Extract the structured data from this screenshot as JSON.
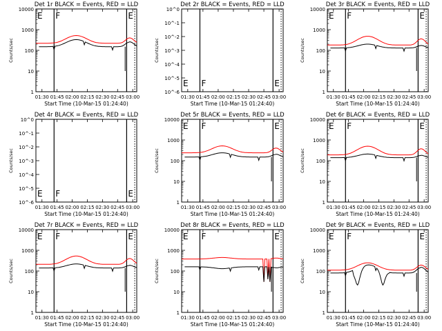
{
  "figure": {
    "xlabel": "Start Time (10-Mar-15 01:24:40)",
    "ylabel": "Counts/sec",
    "x_ticks": [
      "01:30",
      "01:45",
      "02:00",
      "02:15",
      "02:30",
      "02:45",
      "03:00"
    ],
    "x_range_min_after_start": [
      0,
      100
    ],
    "y_tick_labels_counts": [
      "1",
      "10",
      "100",
      "1000",
      "10000"
    ],
    "y_range_counts": [
      1,
      10000
    ],
    "y_tick_labels_small": [
      "10^-6",
      "10^-5",
      "10^-4",
      "10^-3",
      "10^-2",
      "10^-1",
      "10^0"
    ],
    "y_range_small": [
      1e-06,
      1
    ],
    "colors": {
      "events": "#000000",
      "lld": "#ff0000"
    },
    "annotations": [
      "E",
      "F",
      "E"
    ],
    "marker_times_min": [
      18,
      90
    ],
    "dotted_time_min": 98
  },
  "chart_data": [
    {
      "type": "line",
      "title": "Det 1r BLACK = Events, RED = LLD",
      "ylim": [
        1,
        10000
      ],
      "has_data": true,
      "events_level": 150,
      "lld_level": 220,
      "events_peak": 330,
      "lld_peak": 520,
      "notch": null,
      "spikes": [],
      "end_drop": true
    },
    {
      "type": "line",
      "title": "Det 2r BLACK = Events, RED = LLD",
      "ylim": [
        1e-06,
        1
      ],
      "has_data": false
    },
    {
      "type": "line",
      "title": "Det 3r BLACK = Events, RED = LLD",
      "ylim": [
        1,
        10000
      ],
      "has_data": true,
      "events_level": 130,
      "lld_level": 180,
      "events_peak": 200,
      "lld_peak": 480,
      "notch": null,
      "spikes": [],
      "end_drop": true
    },
    {
      "type": "line",
      "title": "Det 4r BLACK = Events, RED = LLD",
      "ylim": [
        1e-06,
        1
      ],
      "has_data": false
    },
    {
      "type": "line",
      "title": "Det 5r BLACK = Events, RED = LLD",
      "ylim": [
        1,
        10000
      ],
      "has_data": true,
      "events_level": 150,
      "lld_level": 240,
      "events_peak": 240,
      "lld_peak": 520,
      "notch": null,
      "spikes": [],
      "end_drop": true
    },
    {
      "type": "line",
      "title": "Det 6r BLACK = Events, RED = LLD",
      "ylim": [
        1,
        10000
      ],
      "has_data": true,
      "events_level": 140,
      "lld_level": 190,
      "events_peak": 210,
      "lld_peak": 500,
      "notch": null,
      "spikes": [],
      "end_drop": true
    },
    {
      "type": "line",
      "title": "Det 7r BLACK = Events, RED = LLD",
      "ylim": [
        1,
        10000
      ],
      "has_data": true,
      "events_level": 140,
      "lld_level": 210,
      "events_peak": 220,
      "lld_peak": 530,
      "notch": null,
      "spikes": [],
      "end_drop": true
    },
    {
      "type": "line",
      "title": "Det 8r BLACK = Events, RED = LLD",
      "ylim": [
        1,
        10000
      ],
      "has_data": true,
      "events_level": 160,
      "lld_level": 380,
      "events_peak": 130,
      "lld_peak": 450,
      "notch": null,
      "spikes": [
        [
          81,
          30
        ],
        [
          85,
          40
        ],
        [
          87,
          30
        ]
      ],
      "end_drop": true
    },
    {
      "type": "line",
      "title": "Det 9r BLACK = Events, RED = LLD",
      "ylim": [
        1,
        10000
      ],
      "has_data": true,
      "events_level": 80,
      "lld_level": 110,
      "events_peak": 200,
      "lld_peak": 250,
      "notch": [
        [
          30,
          9
        ],
        [
          45,
          30
        ],
        [
          55,
          18
        ]
      ],
      "spikes": [],
      "end_drop": true
    }
  ]
}
